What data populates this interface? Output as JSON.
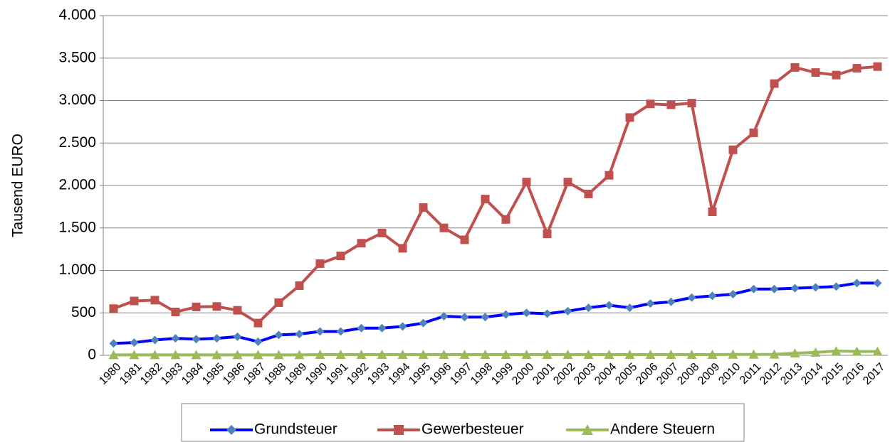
{
  "chart_data": {
    "type": "line",
    "y_label": "Tausend EURO",
    "categories": [
      "1980",
      "1981",
      "1982",
      "1983",
      "1984",
      "1985",
      "1986",
      "1987",
      "1988",
      "1989",
      "1990",
      "1991",
      "1992",
      "1993",
      "1994",
      "1995",
      "1996",
      "1997",
      "1998",
      "1999",
      "2000",
      "2001",
      "2002",
      "2003",
      "2004",
      "2005",
      "2006",
      "2007",
      "2008",
      "2009",
      "2010",
      "2011",
      "2012",
      "2013",
      "2014",
      "2015",
      "2016",
      "2017"
    ],
    "series": [
      {
        "name": "Grundsteuer",
        "color": "#0000ff",
        "marker_color": "#4f81bd",
        "marker": "diamond",
        "values": [
          140,
          150,
          180,
          200,
          190,
          200,
          220,
          160,
          240,
          250,
          280,
          280,
          320,
          320,
          340,
          380,
          460,
          450,
          450,
          480,
          500,
          490,
          520,
          560,
          590,
          560,
          610,
          630,
          680,
          700,
          720,
          780,
          780,
          790,
          800,
          810,
          850,
          850
        ]
      },
      {
        "name": "Gewerbesteuer",
        "color": "#c0504d",
        "marker_color": "#c0504d",
        "marker": "square",
        "values": [
          550,
          640,
          650,
          510,
          570,
          575,
          530,
          380,
          620,
          820,
          1080,
          1170,
          1320,
          1440,
          1260,
          1740,
          1500,
          1360,
          1840,
          1600,
          2040,
          1430,
          2040,
          1900,
          2120,
          2800,
          2960,
          2950,
          2970,
          1690,
          2420,
          2620,
          3200,
          3390,
          3330,
          3300,
          3380,
          3400
        ]
      },
      {
        "name": "Andere Steuern",
        "color": "#9bbb59",
        "marker_color": "#9bbb59",
        "marker": "triangle",
        "values": [
          5,
          5,
          5,
          5,
          5,
          5,
          5,
          5,
          5,
          5,
          8,
          8,
          8,
          8,
          8,
          8,
          8,
          8,
          8,
          8,
          8,
          8,
          8,
          8,
          8,
          8,
          8,
          8,
          8,
          8,
          10,
          10,
          12,
          25,
          35,
          50,
          45,
          45
        ]
      }
    ],
    "ylim": [
      0,
      4000
    ],
    "yticks": [
      0,
      500,
      {
        "value": 1000,
        "label": "1.000"
      },
      {
        "value": 1500,
        "label": "1.500"
      },
      {
        "value": 2000,
        "label": "2.000"
      },
      {
        "value": 2500,
        "label": "2.500"
      },
      {
        "value": 3000,
        "label": "3.000"
      },
      {
        "value": 3500,
        "label": "3.500"
      },
      {
        "value": 4000,
        "label": "4.000"
      }
    ],
    "grid": true,
    "legend": "bottom"
  }
}
